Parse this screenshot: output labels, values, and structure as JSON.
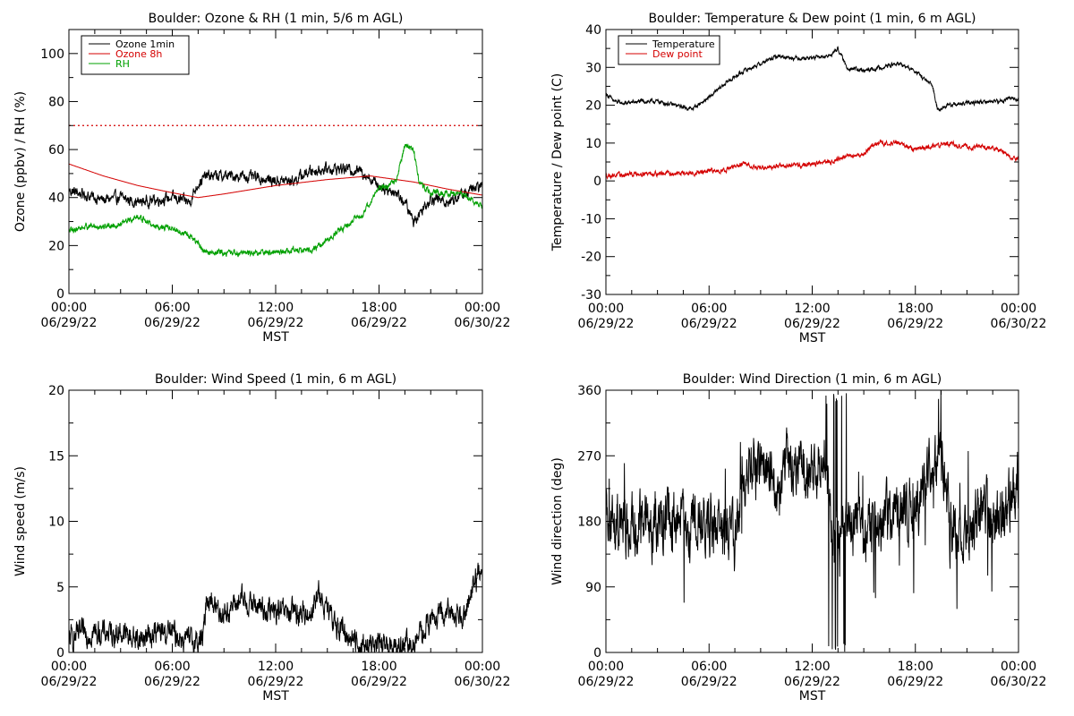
{
  "chart_data": [
    {
      "id": "ozone",
      "type": "line",
      "title": "Boulder: Ozone & RH (1 min, 5/6 m AGL)",
      "xlabel": "MST",
      "ylabel": "Ozone (ppbv) / RH (%)",
      "xlim": [
        0,
        24
      ],
      "ylim": [
        0,
        110
      ],
      "yticks": [
        0,
        20,
        40,
        60,
        80,
        100
      ],
      "xtick_labels": [
        {
          "x": 0,
          "time": "00:00",
          "date": "06/29/22"
        },
        {
          "x": 6,
          "time": "06:00",
          "date": "06/29/22"
        },
        {
          "x": 12,
          "time": "12:00",
          "date": "06/29/22"
        },
        {
          "x": 18,
          "time": "18:00",
          "date": "06/29/22"
        },
        {
          "x": 24,
          "time": "00:00",
          "date": "06/30/22"
        }
      ],
      "legend": {
        "position": "top-left"
      },
      "reference_lines": [
        {
          "y": 70,
          "color": "#d40000",
          "style": "dotted"
        }
      ],
      "series": [
        {
          "name": "Ozone 1min",
          "color": "#000000",
          "noise": 2.2,
          "x": [
            0,
            1,
            2,
            3,
            4,
            5,
            6,
            7,
            7.5,
            8,
            9,
            10,
            11,
            12,
            13,
            14,
            15,
            16,
            17,
            17.5,
            18,
            19,
            19.5,
            20,
            21,
            22,
            23,
            24
          ],
          "y": [
            43,
            41,
            39,
            40,
            38,
            39,
            40,
            38,
            46,
            49,
            49,
            49,
            48,
            47,
            47,
            51,
            52,
            52,
            51,
            48,
            45,
            42,
            38,
            30,
            40,
            38,
            42,
            45
          ]
        },
        {
          "name": "Ozone 8h",
          "color": "#d40000",
          "noise": 0,
          "x": [
            0,
            2,
            4,
            6,
            7.5,
            9,
            12,
            15,
            17.5,
            20,
            22,
            24
          ],
          "y": [
            54,
            49,
            45,
            42,
            40,
            41.5,
            45,
            47.5,
            49,
            46.5,
            43.5,
            41
          ]
        },
        {
          "name": "RH",
          "color": "#00a000",
          "noise": 1.2,
          "x": [
            0,
            1,
            2,
            3,
            4,
            5,
            6,
            7,
            8,
            9,
            10,
            11,
            12,
            13,
            14,
            15,
            16,
            17,
            17.5,
            18,
            18.5,
            19,
            19.5,
            20,
            20.3,
            20.8,
            21,
            22,
            23,
            24
          ],
          "y": [
            26,
            28,
            28,
            29,
            32,
            28,
            27,
            24,
            17,
            17,
            17,
            17,
            17,
            18,
            18,
            22,
            28,
            33,
            38,
            44,
            45,
            47,
            62,
            60,
            47,
            43,
            42,
            42,
            41,
            36
          ]
        }
      ]
    },
    {
      "id": "temperature",
      "type": "line",
      "title": "Boulder: Temperature & Dew point (1 min, 6 m AGL)",
      "xlabel": "MST",
      "ylabel": "Temperature / Dew point (C)",
      "xlim": [
        0,
        24
      ],
      "ylim": [
        -30,
        40
      ],
      "yticks": [
        -30,
        -20,
        -10,
        0,
        10,
        20,
        30,
        40
      ],
      "xtick_labels": [
        {
          "x": 0,
          "time": "00:00",
          "date": "06/29/22"
        },
        {
          "x": 6,
          "time": "06:00",
          "date": "06/29/22"
        },
        {
          "x": 12,
          "time": "12:00",
          "date": "06/29/22"
        },
        {
          "x": 18,
          "time": "18:00",
          "date": "06/29/22"
        },
        {
          "x": 24,
          "time": "00:00",
          "date": "06/30/22"
        }
      ],
      "legend": {
        "position": "top-left"
      },
      "series": [
        {
          "name": "Temperature",
          "color": "#000000",
          "noise": 0.5,
          "x": [
            0,
            0.5,
            1,
            2,
            3,
            4,
            5,
            6,
            7,
            8,
            9,
            10,
            11,
            12,
            13,
            13.5,
            14,
            15,
            16,
            17,
            18,
            19,
            19.3,
            20,
            21,
            22,
            23,
            23.5,
            24
          ],
          "y": [
            23,
            21,
            20.5,
            21,
            21,
            20,
            19,
            22,
            26,
            29,
            31,
            33,
            32.5,
            32.5,
            33,
            35,
            30,
            29,
            30,
            31,
            29,
            25,
            19,
            20,
            20.5,
            21,
            21,
            22,
            21.5
          ]
        },
        {
          "name": "Dew point",
          "color": "#d40000",
          "noise": 0.6,
          "x": [
            0,
            1,
            2,
            3,
            4,
            5,
            6,
            7,
            8,
            9,
            10,
            11,
            12,
            13,
            14,
            15,
            15.5,
            16,
            17,
            18,
            19,
            20,
            21,
            22,
            23,
            23.5,
            24
          ],
          "y": [
            1.5,
            1.5,
            2,
            2,
            2,
            2,
            2.5,
            3,
            4.5,
            3.5,
            4,
            4,
            4.5,
            5,
            6.5,
            7,
            9.5,
            10,
            10,
            8.5,
            9,
            10,
            9,
            9,
            8,
            6.5,
            6
          ]
        }
      ]
    },
    {
      "id": "windspeed",
      "type": "line",
      "title": "Boulder: Wind Speed (1 min, 6 m AGL)",
      "xlabel": "MST",
      "ylabel": "Wind speed (m/s)",
      "xlim": [
        0,
        24
      ],
      "ylim": [
        0,
        20
      ],
      "yticks": [
        0,
        5,
        10,
        15,
        20
      ],
      "xtick_labels": [
        {
          "x": 0,
          "time": "00:00",
          "date": "06/29/22"
        },
        {
          "x": 6,
          "time": "06:00",
          "date": "06/29/22"
        },
        {
          "x": 12,
          "time": "12:00",
          "date": "06/29/22"
        },
        {
          "x": 18,
          "time": "18:00",
          "date": "06/29/22"
        },
        {
          "x": 24,
          "time": "00:00",
          "date": "06/30/22"
        }
      ],
      "series": [
        {
          "name": "",
          "color": "#000000",
          "noise": 0.9,
          "min": 0,
          "x": [
            0,
            1,
            2,
            3,
            4,
            5,
            6,
            7,
            7.8,
            8,
            8.5,
            9,
            10,
            11,
            12,
            13,
            14,
            14.5,
            15,
            16,
            17,
            18,
            19,
            20,
            21,
            22,
            23,
            23.5,
            24
          ],
          "y": [
            1,
            1.5,
            1.5,
            1.5,
            1,
            1.5,
            1.5,
            0.8,
            1,
            4.5,
            3.5,
            3,
            4,
            3.5,
            3,
            3,
            3,
            4.5,
            3,
            1.5,
            0.5,
            0.5,
            0.5,
            0.5,
            2.5,
            3,
            3,
            5.5,
            6
          ]
        }
      ]
    },
    {
      "id": "winddir",
      "type": "line",
      "title": "Boulder: Wind Direction (1 min, 6 m AGL)",
      "xlabel": "MST",
      "ylabel": "Wind direction (deg)",
      "xlim": [
        0,
        24
      ],
      "ylim": [
        0,
        360
      ],
      "yticks": [
        0,
        90,
        180,
        270,
        360
      ],
      "xtick_labels": [
        {
          "x": 0,
          "time": "00:00",
          "date": "06/29/22"
        },
        {
          "x": 6,
          "time": "06:00",
          "date": "06/29/22"
        },
        {
          "x": 12,
          "time": "12:00",
          "date": "06/29/22"
        },
        {
          "x": 18,
          "time": "18:00",
          "date": "06/29/22"
        },
        {
          "x": 24,
          "time": "00:00",
          "date": "06/30/22"
        }
      ],
      "series": [
        {
          "name": "",
          "color": "#000000",
          "noise": 40,
          "min": 0,
          "max": 360,
          "x": [
            0,
            1,
            2,
            3,
            4,
            5,
            6,
            7,
            7.5,
            8,
            9,
            10,
            11,
            12,
            12.8,
            13,
            13.5,
            14,
            15,
            16,
            17,
            18,
            19,
            19.5,
            20,
            21,
            22,
            23,
            23.5,
            24
          ],
          "y": [
            180,
            170,
            175,
            180,
            180,
            170,
            175,
            165,
            150,
            250,
            250,
            240,
            260,
            250,
            280,
            180,
            160,
            180,
            160,
            180,
            200,
            200,
            240,
            260,
            170,
            160,
            190,
            175,
            210,
            230
          ]
        }
      ]
    }
  ]
}
